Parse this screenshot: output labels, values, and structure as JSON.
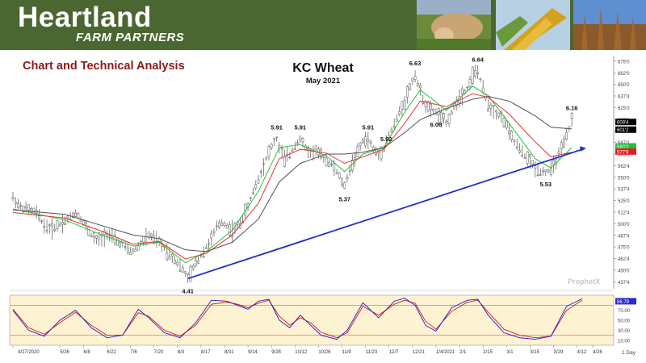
{
  "header": {
    "brand": "Heartland",
    "tagline": "FARM PARTNERS",
    "colors": {
      "band": "#4a6631"
    }
  },
  "section_title": "Chart and Technical Analysis",
  "watermark": "ProphetX",
  "chart_data": {
    "type": "candlestick",
    "title": "KC Wheat",
    "subtitle": "May 2021",
    "y_ticks": [
      "675'0",
      "662'0",
      "650'0",
      "637'4",
      "625'0",
      "612'4",
      "600'0",
      "587'4",
      "575'0",
      "562'4",
      "550'0",
      "537'4",
      "525'0",
      "512'4",
      "500'0",
      "487'4",
      "475'0",
      "462'4",
      "450'0",
      "437'4"
    ],
    "ylim": [
      430,
      680
    ],
    "x_ticks": [
      "4/27/2020",
      "5/26",
      "6/8",
      "6/22",
      "7/6",
      "7/20",
      "8/3",
      "8/17",
      "8/31",
      "9/14",
      "9/28",
      "10/12",
      "10/26",
      "11/9",
      "11/23",
      "12/7",
      "12/21",
      "1/4/2021",
      "2/1",
      "2/15",
      "3/1",
      "3/15",
      "3/29",
      "4/12",
      "4/26"
    ],
    "price_tags": [
      {
        "text": "609'4",
        "color": "#000000"
      },
      {
        "text": "601'2",
        "color": "#000000"
      },
      {
        "text": "583'2",
        "color": "#22c33a"
      },
      {
        "text": "577'6",
        "color": "#e02020"
      }
    ],
    "price_path": [
      [
        0,
        528
      ],
      [
        3,
        518
      ],
      [
        6,
        515
      ],
      [
        9,
        512
      ],
      [
        12,
        498
      ],
      [
        15,
        494
      ],
      [
        18,
        500
      ],
      [
        21,
        505
      ],
      [
        24,
        512
      ],
      [
        26,
        506
      ],
      [
        28,
        497
      ],
      [
        30,
        488
      ],
      [
        32,
        482
      ],
      [
        34,
        484
      ],
      [
        36,
        490
      ],
      [
        38,
        485
      ],
      [
        40,
        480
      ],
      [
        42,
        478
      ],
      [
        44,
        472
      ],
      [
        46,
        470
      ],
      [
        48,
        476
      ],
      [
        50,
        482
      ],
      [
        52,
        487
      ],
      [
        54,
        484
      ],
      [
        56,
        480
      ],
      [
        58,
        474
      ],
      [
        60,
        468
      ],
      [
        62,
        462
      ],
      [
        64,
        455
      ],
      [
        66,
        446
      ],
      [
        67,
        441
      ],
      [
        68,
        446
      ],
      [
        70,
        458
      ],
      [
        72,
        466
      ],
      [
        74,
        475
      ],
      [
        76,
        484
      ],
      [
        78,
        496
      ],
      [
        80,
        502
      ],
      [
        82,
        498
      ],
      [
        84,
        493
      ],
      [
        86,
        497
      ],
      [
        88,
        506
      ],
      [
        90,
        518
      ],
      [
        92,
        535
      ],
      [
        94,
        548
      ],
      [
        96,
        563
      ],
      [
        98,
        577
      ],
      [
        100,
        588
      ],
      [
        101,
        591
      ],
      [
        102,
        582
      ],
      [
        104,
        570
      ],
      [
        106,
        574
      ],
      [
        108,
        585
      ],
      [
        110,
        591
      ],
      [
        112,
        582
      ],
      [
        114,
        576
      ],
      [
        116,
        579
      ],
      [
        118,
        573
      ],
      [
        120,
        568
      ],
      [
        122,
        564
      ],
      [
        124,
        556
      ],
      [
        126,
        545
      ],
      [
        127,
        540
      ],
      [
        128,
        550
      ],
      [
        130,
        565
      ],
      [
        132,
        577
      ],
      [
        134,
        589
      ],
      [
        136,
        591
      ],
      [
        138,
        580
      ],
      [
        140,
        574
      ],
      [
        142,
        582
      ],
      [
        144,
        595
      ],
      [
        146,
        606
      ],
      [
        148,
        620
      ],
      [
        150,
        632
      ],
      [
        152,
        647
      ],
      [
        154,
        660
      ],
      [
        156,
        642
      ],
      [
        158,
        628
      ],
      [
        160,
        622
      ],
      [
        162,
        620
      ],
      [
        164,
        614
      ],
      [
        166,
        608
      ],
      [
        168,
        620
      ],
      [
        170,
        632
      ],
      [
        172,
        640
      ],
      [
        174,
        646
      ],
      [
        176,
        660
      ],
      [
        178,
        664
      ],
      [
        180,
        644
      ],
      [
        182,
        628
      ],
      [
        184,
        622
      ],
      [
        186,
        617
      ],
      [
        188,
        612
      ],
      [
        190,
        598
      ],
      [
        192,
        588
      ],
      [
        194,
        580
      ],
      [
        196,
        573
      ],
      [
        198,
        567
      ],
      [
        200,
        560
      ],
      [
        202,
        557
      ],
      [
        204,
        556
      ],
      [
        206,
        558
      ],
      [
        208,
        568
      ],
      [
        210,
        580
      ],
      [
        212,
        594
      ],
      [
        213,
        602
      ],
      [
        214,
        612
      ]
    ],
    "series": [
      {
        "name": "",
        "color": "#29c435",
        "path": [
          [
            0,
            516
          ],
          [
            20,
            504
          ],
          [
            34,
            488
          ],
          [
            46,
            476
          ],
          [
            56,
            480
          ],
          [
            66,
            458
          ],
          [
            74,
            470
          ],
          [
            84,
            493
          ],
          [
            94,
            535
          ],
          [
            102,
            582
          ],
          [
            110,
            585
          ],
          [
            120,
            573
          ],
          [
            127,
            556
          ],
          [
            134,
            575
          ],
          [
            142,
            582
          ],
          [
            150,
            620
          ],
          [
            156,
            644
          ],
          [
            166,
            622
          ],
          [
            176,
            648
          ],
          [
            182,
            638
          ],
          [
            190,
            608
          ],
          [
            200,
            570
          ],
          [
            206,
            560
          ],
          [
            214,
            582
          ]
        ]
      },
      {
        "name": "",
        "color": "#e53434",
        "path": [
          [
            0,
            512
          ],
          [
            20,
            506
          ],
          [
            34,
            492
          ],
          [
            46,
            478
          ],
          [
            56,
            481
          ],
          [
            66,
            462
          ],
          [
            74,
            468
          ],
          [
            84,
            488
          ],
          [
            94,
            522
          ],
          [
            102,
            570
          ],
          [
            110,
            580
          ],
          [
            120,
            576
          ],
          [
            127,
            565
          ],
          [
            134,
            572
          ],
          [
            142,
            580
          ],
          [
            150,
            608
          ],
          [
            156,
            632
          ],
          [
            166,
            626
          ],
          [
            176,
            640
          ],
          [
            182,
            636
          ],
          [
            190,
            618
          ],
          [
            200,
            588
          ],
          [
            206,
            572
          ],
          [
            214,
            577
          ]
        ]
      },
      {
        "name": "",
        "color": "#505050",
        "path": [
          [
            0,
            515
          ],
          [
            20,
            510
          ],
          [
            34,
            498
          ],
          [
            46,
            488
          ],
          [
            56,
            484
          ],
          [
            66,
            472
          ],
          [
            74,
            470
          ],
          [
            84,
            480
          ],
          [
            94,
            505
          ],
          [
            102,
            545
          ],
          [
            110,
            565
          ],
          [
            120,
            575
          ],
          [
            127,
            575
          ],
          [
            134,
            577
          ],
          [
            142,
            582
          ],
          [
            150,
            598
          ],
          [
            156,
            612
          ],
          [
            166,
            624
          ],
          [
            176,
            634
          ],
          [
            182,
            637
          ],
          [
            190,
            632
          ],
          [
            200,
            616
          ],
          [
            206,
            604
          ],
          [
            214,
            602
          ]
        ]
      }
    ],
    "trendline": {
      "color": "#1f2fc9",
      "from": [
        67,
        441
      ],
      "to": [
        218,
        580
      ]
    },
    "annotations": [
      {
        "text": "4.41",
        "at": [
          67,
          441
        ],
        "pos": "below"
      },
      {
        "text": "5.91",
        "at": [
          101,
          591
        ],
        "pos": "above"
      },
      {
        "text": "5.91",
        "at": [
          110,
          591
        ],
        "pos": "above"
      },
      {
        "text": "5.37",
        "at": [
          127,
          540
        ],
        "pos": "below"
      },
      {
        "text": "5.91",
        "at": [
          136,
          591
        ],
        "pos": "above"
      },
      {
        "text": "5.92",
        "at": [
          146,
          606
        ],
        "pos": "below-left"
      },
      {
        "text": "6.63",
        "at": [
          154,
          660
        ],
        "pos": "above"
      },
      {
        "text": "6.08",
        "at": [
          162,
          620
        ],
        "pos": "below"
      },
      {
        "text": "6.64",
        "at": [
          178,
          664
        ],
        "pos": "above"
      },
      {
        "text": "5.53",
        "at": [
          204,
          556
        ],
        "pos": "below"
      },
      {
        "text": "6.16",
        "at": [
          214,
          612
        ],
        "pos": "above"
      }
    ],
    "oscillator": {
      "type": "stochastic",
      "ylim": [
        0,
        100
      ],
      "ticks": [
        "70.00",
        "50.00",
        "30.00",
        "10.00"
      ],
      "tag": "86.79",
      "band_color": "#fdf2d2",
      "level_lines": [
        80,
        20
      ],
      "k": {
        "color": "#1a1ad0",
        "path": [
          [
            0,
            70
          ],
          [
            6,
            30
          ],
          [
            12,
            18
          ],
          [
            18,
            50
          ],
          [
            24,
            70
          ],
          [
            30,
            35
          ],
          [
            36,
            15
          ],
          [
            42,
            20
          ],
          [
            48,
            72
          ],
          [
            52,
            55
          ],
          [
            58,
            25
          ],
          [
            64,
            15
          ],
          [
            70,
            45
          ],
          [
            76,
            90
          ],
          [
            82,
            88
          ],
          [
            86,
            80
          ],
          [
            90,
            72
          ],
          [
            94,
            88
          ],
          [
            98,
            92
          ],
          [
            102,
            50
          ],
          [
            106,
            35
          ],
          [
            110,
            60
          ],
          [
            114,
            40
          ],
          [
            118,
            20
          ],
          [
            124,
            12
          ],
          [
            128,
            30
          ],
          [
            134,
            85
          ],
          [
            140,
            55
          ],
          [
            146,
            88
          ],
          [
            150,
            94
          ],
          [
            154,
            80
          ],
          [
            158,
            40
          ],
          [
            162,
            28
          ],
          [
            168,
            75
          ],
          [
            174,
            90
          ],
          [
            178,
            92
          ],
          [
            182,
            60
          ],
          [
            188,
            25
          ],
          [
            194,
            15
          ],
          [
            200,
            12
          ],
          [
            206,
            18
          ],
          [
            212,
            78
          ],
          [
            218,
            93
          ]
        ]
      },
      "d": {
        "color": "#d01a1a",
        "path": [
          [
            0,
            72
          ],
          [
            6,
            35
          ],
          [
            12,
            22
          ],
          [
            18,
            45
          ],
          [
            24,
            66
          ],
          [
            30,
            40
          ],
          [
            36,
            20
          ],
          [
            42,
            20
          ],
          [
            48,
            65
          ],
          [
            52,
            58
          ],
          [
            58,
            30
          ],
          [
            64,
            18
          ],
          [
            70,
            40
          ],
          [
            76,
            82
          ],
          [
            82,
            86
          ],
          [
            86,
            82
          ],
          [
            90,
            75
          ],
          [
            94,
            84
          ],
          [
            98,
            90
          ],
          [
            102,
            58
          ],
          [
            106,
            40
          ],
          [
            110,
            55
          ],
          [
            114,
            45
          ],
          [
            118,
            26
          ],
          [
            124,
            15
          ],
          [
            128,
            25
          ],
          [
            134,
            78
          ],
          [
            140,
            60
          ],
          [
            146,
            82
          ],
          [
            150,
            90
          ],
          [
            154,
            84
          ],
          [
            158,
            48
          ],
          [
            162,
            32
          ],
          [
            168,
            68
          ],
          [
            174,
            86
          ],
          [
            178,
            90
          ],
          [
            182,
            66
          ],
          [
            188,
            32
          ],
          [
            194,
            20
          ],
          [
            200,
            15
          ],
          [
            206,
            18
          ],
          [
            212,
            70
          ],
          [
            218,
            90
          ]
        ]
      }
    },
    "time_unit": "1 Day"
  }
}
